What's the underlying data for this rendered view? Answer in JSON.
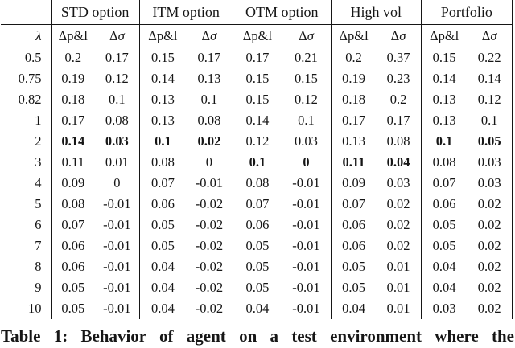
{
  "table": {
    "groups": [
      "STD option",
      "ITM option",
      "OTM option",
      "High vol",
      "Portfolio"
    ],
    "lambda_symbol": "λ",
    "subheaders": {
      "delta": "Δ",
      "pnl": "p&l",
      "sigma": "σ"
    },
    "rows": [
      {
        "lambda": "0.5",
        "cells": [
          "0.2",
          "0.17",
          "0.15",
          "0.17",
          "0.17",
          "0.21",
          "0.2",
          "0.37",
          "0.15",
          "0.22"
        ],
        "bold": []
      },
      {
        "lambda": "0.75",
        "cells": [
          "0.19",
          "0.12",
          "0.14",
          "0.13",
          "0.15",
          "0.15",
          "0.19",
          "0.23",
          "0.14",
          "0.14"
        ],
        "bold": []
      },
      {
        "lambda": "0.82",
        "cells": [
          "0.18",
          "0.1",
          "0.13",
          "0.1",
          "0.15",
          "0.12",
          "0.18",
          "0.2",
          "0.13",
          "0.12"
        ],
        "bold": []
      },
      {
        "lambda": "1",
        "cells": [
          "0.17",
          "0.08",
          "0.13",
          "0.08",
          "0.14",
          "0.1",
          "0.17",
          "0.17",
          "0.13",
          "0.1"
        ],
        "bold": []
      },
      {
        "lambda": "2",
        "cells": [
          "0.14",
          "0.03",
          "0.1",
          "0.02",
          "0.12",
          "0.03",
          "0.13",
          "0.08",
          "0.1",
          "0.05"
        ],
        "bold": [
          0,
          1,
          2,
          3,
          8,
          9
        ]
      },
      {
        "lambda": "3",
        "cells": [
          "0.11",
          "0.01",
          "0.08",
          "0",
          "0.1",
          "0",
          "0.11",
          "0.04",
          "0.08",
          "0.03"
        ],
        "bold": [
          4,
          5,
          6,
          7
        ]
      },
      {
        "lambda": "4",
        "cells": [
          "0.09",
          "0",
          "0.07",
          "-0.01",
          "0.08",
          "-0.01",
          "0.09",
          "0.03",
          "0.07",
          "0.03"
        ],
        "bold": []
      },
      {
        "lambda": "5",
        "cells": [
          "0.08",
          "-0.01",
          "0.06",
          "-0.02",
          "0.07",
          "-0.01",
          "0.07",
          "0.02",
          "0.06",
          "0.02"
        ],
        "bold": []
      },
      {
        "lambda": "6",
        "cells": [
          "0.07",
          "-0.01",
          "0.05",
          "-0.02",
          "0.06",
          "-0.01",
          "0.06",
          "0.02",
          "0.05",
          "0.02"
        ],
        "bold": []
      },
      {
        "lambda": "7",
        "cells": [
          "0.06",
          "-0.01",
          "0.05",
          "-0.02",
          "0.05",
          "-0.01",
          "0.06",
          "0.02",
          "0.05",
          "0.02"
        ],
        "bold": []
      },
      {
        "lambda": "8",
        "cells": [
          "0.06",
          "-0.01",
          "0.04",
          "-0.02",
          "0.05",
          "-0.01",
          "0.05",
          "0.01",
          "0.04",
          "0.02"
        ],
        "bold": []
      },
      {
        "lambda": "9",
        "cells": [
          "0.05",
          "-0.01",
          "0.04",
          "-0.02",
          "0.05",
          "-0.01",
          "0.05",
          "0.01",
          "0.04",
          "0.02"
        ],
        "bold": []
      },
      {
        "lambda": "10",
        "cells": [
          "0.05",
          "-0.01",
          "0.04",
          "-0.02",
          "0.04",
          "-0.01",
          "0.04",
          "0.01",
          "0.03",
          "0.02"
        ],
        "bold": []
      }
    ],
    "caption": "Table 1: Behavior of agent on a test environment where the"
  }
}
